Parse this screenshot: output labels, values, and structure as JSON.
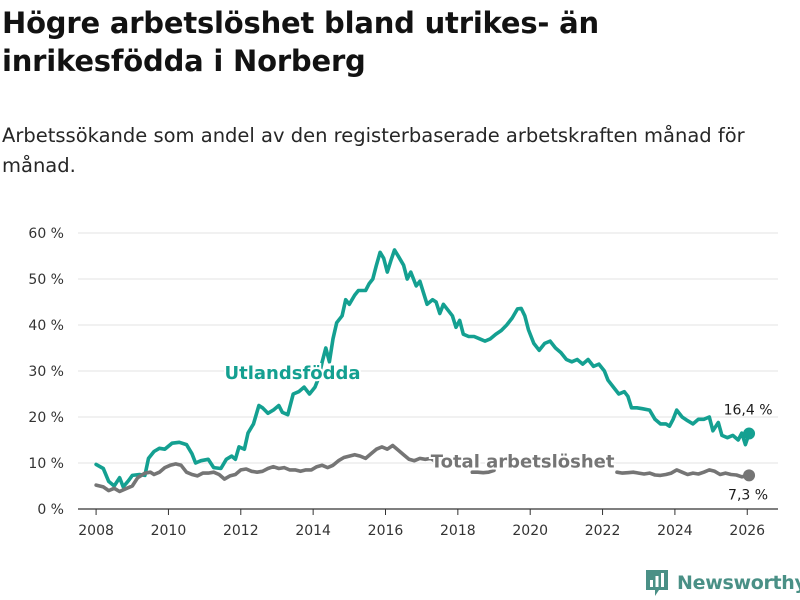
{
  "title": "Högre arbetslöshet bland utrikes- än inrikesfödda i Norberg",
  "subtitle": "Arbetssökande som andel av den registerbaserade arbetskraften månad för månad.",
  "brand": {
    "name": "Newsworthy",
    "icon": "newsworthy-logo-icon"
  },
  "colors": {
    "foreign_born": "#14a091",
    "total": "#757575",
    "grid": "#e3e3e3",
    "axis": "#333333"
  },
  "chart_data": {
    "type": "line",
    "title": "Högre arbetslöshet bland utrikes- än inrikesfödda i Norberg",
    "xlabel": "",
    "ylabel": "",
    "xlim": [
      2007.5,
      2026.85
    ],
    "ylim": [
      0,
      60
    ],
    "y_ticks": [
      0,
      10,
      20,
      30,
      40,
      50,
      60
    ],
    "y_tick_labels": [
      "0 %",
      "10 %",
      "20 %",
      "30 %",
      "40 %",
      "50 %",
      "60 %"
    ],
    "x_ticks": [
      2008,
      2010,
      2012,
      2014,
      2016,
      2018,
      2020,
      2022,
      2024,
      2026
    ],
    "x_tick_labels": [
      "2008",
      "2010",
      "2012",
      "2014",
      "2016",
      "2018",
      "2020",
      "2022",
      "2024",
      "2026"
    ],
    "grid": true,
    "series": [
      {
        "name": "Utlandsfödda",
        "label": "Utlandsfödda",
        "end_label": "16,4 %",
        "last_value": 16.4,
        "points": [
          [
            2008.0,
            9.7
          ],
          [
            2008.2,
            8.8
          ],
          [
            2008.35,
            6.0
          ],
          [
            2008.5,
            5.0
          ],
          [
            2008.65,
            6.8
          ],
          [
            2008.75,
            4.8
          ],
          [
            2008.9,
            6.2
          ],
          [
            2009.0,
            7.3
          ],
          [
            2009.2,
            7.5
          ],
          [
            2009.35,
            7.3
          ],
          [
            2009.45,
            11.0
          ],
          [
            2009.6,
            12.5
          ],
          [
            2009.75,
            13.2
          ],
          [
            2009.9,
            13.0
          ],
          [
            2010.1,
            14.3
          ],
          [
            2010.3,
            14.5
          ],
          [
            2010.5,
            14.0
          ],
          [
            2010.65,
            12.0
          ],
          [
            2010.75,
            10.0
          ],
          [
            2010.9,
            10.5
          ],
          [
            2011.1,
            10.8
          ],
          [
            2011.25,
            9.0
          ],
          [
            2011.45,
            8.8
          ],
          [
            2011.6,
            10.8
          ],
          [
            2011.75,
            11.5
          ],
          [
            2011.85,
            10.8
          ],
          [
            2011.95,
            13.5
          ],
          [
            2012.1,
            13.0
          ],
          [
            2012.2,
            16.5
          ],
          [
            2012.35,
            18.5
          ],
          [
            2012.5,
            22.5
          ],
          [
            2012.6,
            22.0
          ],
          [
            2012.75,
            20.8
          ],
          [
            2012.9,
            21.5
          ],
          [
            2013.05,
            22.5
          ],
          [
            2013.15,
            21.0
          ],
          [
            2013.3,
            20.5
          ],
          [
            2013.45,
            25.0
          ],
          [
            2013.6,
            25.5
          ],
          [
            2013.75,
            26.5
          ],
          [
            2013.9,
            25.0
          ],
          [
            2014.05,
            26.5
          ],
          [
            2014.15,
            28.5
          ],
          [
            2014.25,
            32.0
          ],
          [
            2014.35,
            35.0
          ],
          [
            2014.45,
            32.0
          ],
          [
            2014.55,
            37.0
          ],
          [
            2014.65,
            40.5
          ],
          [
            2014.8,
            42.0
          ],
          [
            2014.9,
            45.5
          ],
          [
            2015.0,
            44.5
          ],
          [
            2015.15,
            46.5
          ],
          [
            2015.25,
            47.5
          ],
          [
            2015.45,
            47.5
          ],
          [
            2015.55,
            49.0
          ],
          [
            2015.65,
            50.0
          ],
          [
            2015.75,
            53.0
          ],
          [
            2015.85,
            55.8
          ],
          [
            2015.95,
            54.5
          ],
          [
            2016.05,
            51.5
          ],
          [
            2016.15,
            54.0
          ],
          [
            2016.25,
            56.3
          ],
          [
            2016.35,
            55.0
          ],
          [
            2016.5,
            53.0
          ],
          [
            2016.6,
            50.0
          ],
          [
            2016.7,
            51.5
          ],
          [
            2016.85,
            48.5
          ],
          [
            2016.95,
            49.5
          ],
          [
            2017.05,
            47.0
          ],
          [
            2017.15,
            44.5
          ],
          [
            2017.3,
            45.5
          ],
          [
            2017.4,
            45.0
          ],
          [
            2017.5,
            42.5
          ],
          [
            2017.6,
            44.5
          ],
          [
            2017.75,
            43.0
          ],
          [
            2017.85,
            42.0
          ],
          [
            2017.95,
            39.5
          ],
          [
            2018.05,
            41.0
          ],
          [
            2018.15,
            38.0
          ],
          [
            2018.3,
            37.5
          ],
          [
            2018.45,
            37.5
          ],
          [
            2018.6,
            37.0
          ],
          [
            2018.75,
            36.5
          ],
          [
            2018.9,
            37.0
          ],
          [
            2019.05,
            38.0
          ],
          [
            2019.2,
            38.8
          ],
          [
            2019.35,
            40.0
          ],
          [
            2019.5,
            41.5
          ],
          [
            2019.65,
            43.5
          ],
          [
            2019.75,
            43.6
          ],
          [
            2019.85,
            42.0
          ],
          [
            2019.95,
            39.0
          ],
          [
            2020.1,
            36.0
          ],
          [
            2020.25,
            34.5
          ],
          [
            2020.4,
            36.0
          ],
          [
            2020.55,
            36.5
          ],
          [
            2020.7,
            35.0
          ],
          [
            2020.85,
            34.0
          ],
          [
            2021.0,
            32.5
          ],
          [
            2021.15,
            32.0
          ],
          [
            2021.3,
            32.5
          ],
          [
            2021.45,
            31.5
          ],
          [
            2021.6,
            32.5
          ],
          [
            2021.75,
            31.0
          ],
          [
            2021.9,
            31.5
          ],
          [
            2022.05,
            30.0
          ],
          [
            2022.15,
            28.0
          ],
          [
            2022.3,
            26.5
          ],
          [
            2022.45,
            25.0
          ],
          [
            2022.6,
            25.5
          ],
          [
            2022.7,
            24.5
          ],
          [
            2022.8,
            22.0
          ],
          [
            2022.95,
            22.0
          ],
          [
            2023.1,
            21.8
          ],
          [
            2023.3,
            21.5
          ],
          [
            2023.45,
            19.5
          ],
          [
            2023.6,
            18.5
          ],
          [
            2023.75,
            18.5
          ],
          [
            2023.85,
            18.0
          ],
          [
            2023.95,
            19.5
          ],
          [
            2024.05,
            21.5
          ],
          [
            2024.2,
            20.0
          ],
          [
            2024.35,
            19.2
          ],
          [
            2024.5,
            18.5
          ],
          [
            2024.65,
            19.5
          ],
          [
            2024.8,
            19.5
          ],
          [
            2024.95,
            20.0
          ],
          [
            2025.05,
            17.0
          ],
          [
            2025.2,
            18.8
          ],
          [
            2025.3,
            16.0
          ],
          [
            2025.45,
            15.5
          ],
          [
            2025.6,
            16.0
          ],
          [
            2025.75,
            15.0
          ],
          [
            2025.85,
            16.5
          ],
          [
            2025.95,
            14.0
          ],
          [
            2026.05,
            16.4
          ]
        ]
      },
      {
        "name": "Total arbetslöshet",
        "label": "Total arbetslöshet",
        "end_label": "7,3 %",
        "last_value": 7.3,
        "points": [
          [
            2008.0,
            5.2
          ],
          [
            2008.2,
            4.8
          ],
          [
            2008.35,
            4.0
          ],
          [
            2008.5,
            4.5
          ],
          [
            2008.65,
            3.8
          ],
          [
            2008.85,
            4.5
          ],
          [
            2009.0,
            5.0
          ],
          [
            2009.15,
            6.8
          ],
          [
            2009.35,
            7.8
          ],
          [
            2009.5,
            8.0
          ],
          [
            2009.6,
            7.5
          ],
          [
            2009.75,
            8.0
          ],
          [
            2009.9,
            9.0
          ],
          [
            2010.05,
            9.5
          ],
          [
            2010.2,
            9.8
          ],
          [
            2010.35,
            9.5
          ],
          [
            2010.5,
            8.0
          ],
          [
            2010.65,
            7.5
          ],
          [
            2010.8,
            7.2
          ],
          [
            2010.95,
            7.8
          ],
          [
            2011.1,
            7.8
          ],
          [
            2011.25,
            8.0
          ],
          [
            2011.4,
            7.5
          ],
          [
            2011.55,
            6.5
          ],
          [
            2011.7,
            7.2
          ],
          [
            2011.85,
            7.5
          ],
          [
            2012.0,
            8.5
          ],
          [
            2012.15,
            8.7
          ],
          [
            2012.3,
            8.2
          ],
          [
            2012.45,
            8.0
          ],
          [
            2012.6,
            8.2
          ],
          [
            2012.75,
            8.8
          ],
          [
            2012.9,
            9.2
          ],
          [
            2013.05,
            8.8
          ],
          [
            2013.2,
            9.0
          ],
          [
            2013.35,
            8.5
          ],
          [
            2013.5,
            8.5
          ],
          [
            2013.65,
            8.2
          ],
          [
            2013.8,
            8.5
          ],
          [
            2013.95,
            8.5
          ],
          [
            2014.1,
            9.2
          ],
          [
            2014.25,
            9.5
          ],
          [
            2014.4,
            9.0
          ],
          [
            2014.55,
            9.5
          ],
          [
            2014.7,
            10.5
          ],
          [
            2014.85,
            11.2
          ],
          [
            2015.0,
            11.5
          ],
          [
            2015.15,
            11.8
          ],
          [
            2015.3,
            11.5
          ],
          [
            2015.45,
            11.0
          ],
          [
            2015.6,
            12.0
          ],
          [
            2015.75,
            13.0
          ],
          [
            2015.9,
            13.5
          ],
          [
            2016.05,
            13.0
          ],
          [
            2016.2,
            13.8
          ],
          [
            2016.35,
            12.8
          ],
          [
            2016.5,
            11.8
          ],
          [
            2016.65,
            10.8
          ],
          [
            2016.8,
            10.5
          ],
          [
            2016.95,
            11.0
          ],
          [
            2017.1,
            10.8
          ],
          [
            2017.25,
            11.0
          ],
          [
            2017.35,
            10.5
          ],
          [
            2017.42,
            9.2
          ],
          null,
          [
            2018.4,
            8.0
          ],
          [
            2018.55,
            8.0
          ],
          [
            2018.7,
            7.9
          ],
          [
            2018.85,
            8.0
          ],
          [
            2019.0,
            8.4
          ],
          null,
          [
            2022.4,
            8.0
          ],
          [
            2022.55,
            7.8
          ],
          [
            2022.7,
            7.9
          ],
          [
            2022.85,
            8.0
          ],
          [
            2023.0,
            7.8
          ],
          [
            2023.15,
            7.6
          ],
          [
            2023.3,
            7.8
          ],
          [
            2023.45,
            7.4
          ],
          [
            2023.6,
            7.3
          ],
          [
            2023.75,
            7.5
          ],
          [
            2023.9,
            7.8
          ],
          [
            2024.05,
            8.5
          ],
          [
            2024.2,
            8.0
          ],
          [
            2024.35,
            7.5
          ],
          [
            2024.5,
            7.8
          ],
          [
            2024.65,
            7.6
          ],
          [
            2024.8,
            8.0
          ],
          [
            2024.95,
            8.5
          ],
          [
            2025.1,
            8.2
          ],
          [
            2025.25,
            7.5
          ],
          [
            2025.4,
            7.8
          ],
          [
            2025.55,
            7.5
          ],
          [
            2025.7,
            7.4
          ],
          [
            2025.85,
            7.0
          ],
          [
            2026.05,
            7.3
          ]
        ]
      }
    ]
  }
}
